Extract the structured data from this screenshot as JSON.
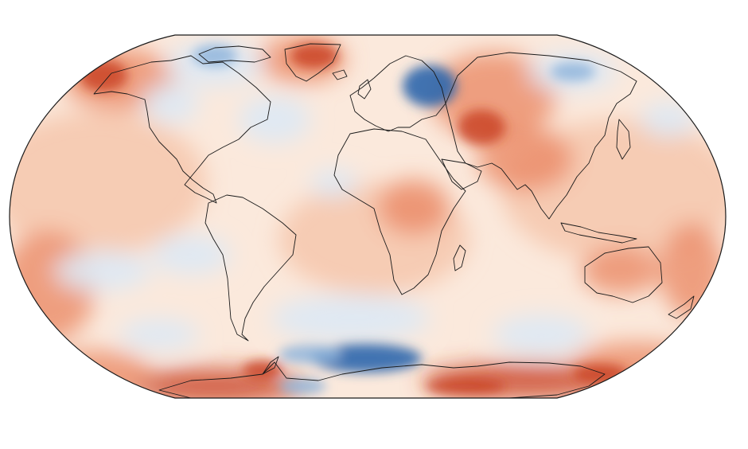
{
  "figure": {
    "type": "choropleth-map",
    "projection": "robinson",
    "title": "",
    "colorbar_shown": false,
    "palette": {
      "deep_blue": "#2c66ad",
      "mid_blue": "#8fb5dc",
      "light_blue": "#dde9f5",
      "neutral": "#fbe9dc",
      "light_red": "#f6c7ad",
      "mid_red": "#ea8560",
      "deep_red": "#c8401e",
      "coastline": "#1a1a1a"
    },
    "anomaly_regions": [
      {
        "name": "arctic-canada-warm",
        "sign": "warm",
        "strength": 0.7
      },
      {
        "name": "greenland-sea-cool",
        "sign": "cool",
        "strength": 0.6
      },
      {
        "name": "hudson-bay-cool",
        "sign": "cool",
        "strength": 0.5
      },
      {
        "name": "north-atlantic-cool",
        "sign": "cool",
        "strength": 0.45
      },
      {
        "name": "eastern-europe-cool",
        "sign": "cool",
        "strength": 0.85
      },
      {
        "name": "siberia-warm",
        "sign": "warm",
        "strength": 0.7
      },
      {
        "name": "east-siberia-cool",
        "sign": "cool",
        "strength": 0.55
      },
      {
        "name": "central-asia-warm",
        "sign": "warm",
        "strength": 0.6
      },
      {
        "name": "north-pacific-cool",
        "sign": "cool",
        "strength": 0.4
      },
      {
        "name": "africa-warm",
        "sign": "warm",
        "strength": 0.45
      },
      {
        "name": "australia-warm",
        "sign": "warm",
        "strength": 0.5
      },
      {
        "name": "south-pacific-cool",
        "sign": "cool",
        "strength": 0.35
      },
      {
        "name": "southern-ocean-cool",
        "sign": "cool",
        "strength": 0.95
      },
      {
        "name": "antarctica-east-warm",
        "sign": "warm",
        "strength": 0.85
      },
      {
        "name": "antarctica-west-warm",
        "sign": "warm",
        "strength": 0.75
      }
    ]
  }
}
